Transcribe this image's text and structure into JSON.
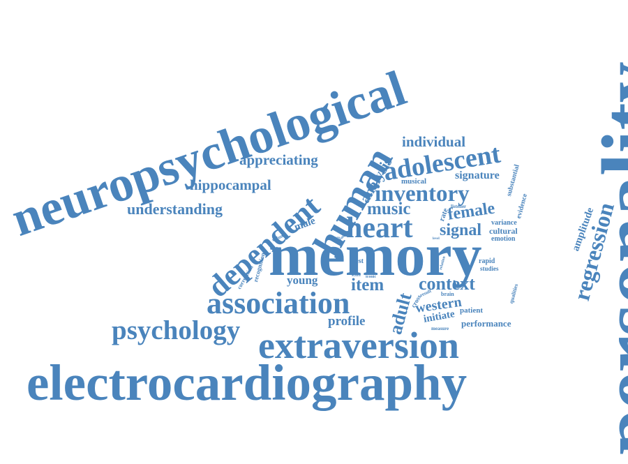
{
  "cloud": {
    "color": "#4a84bc",
    "words": [
      {
        "text": "personality"
      },
      {
        "text": "neuropsychological"
      },
      {
        "text": "electrocardiography"
      },
      {
        "text": "memory"
      },
      {
        "text": "extraversion"
      },
      {
        "text": "association"
      },
      {
        "text": "human"
      },
      {
        "text": "psychology"
      },
      {
        "text": "dependent"
      },
      {
        "text": "heart"
      },
      {
        "text": "adolescent"
      },
      {
        "text": "inventory"
      },
      {
        "text": "regression"
      },
      {
        "text": "context"
      },
      {
        "text": "analysis"
      },
      {
        "text": "understanding"
      },
      {
        "text": "hippocampal"
      },
      {
        "text": "appreciating"
      },
      {
        "text": "individual"
      },
      {
        "text": "music"
      },
      {
        "text": "female"
      },
      {
        "text": "signal"
      },
      {
        "text": "item"
      },
      {
        "text": "adult"
      },
      {
        "text": "western"
      },
      {
        "text": "profile"
      },
      {
        "text": "young"
      },
      {
        "text": "signature"
      },
      {
        "text": "amplitude"
      },
      {
        "text": "male"
      },
      {
        "text": "initiate"
      },
      {
        "text": "performance"
      },
      {
        "text": "cultural"
      },
      {
        "text": "musical"
      },
      {
        "text": "rate"
      },
      {
        "text": "substantial"
      },
      {
        "text": "evidence"
      },
      {
        "text": "variance"
      },
      {
        "text": "emotion"
      },
      {
        "text": "rapid"
      },
      {
        "text": "studies"
      },
      {
        "text": "patient"
      },
      {
        "text": "qualities"
      },
      {
        "text": "test"
      },
      {
        "text": "recognition"
      },
      {
        "text": "correlation"
      },
      {
        "text": "cross"
      },
      {
        "text": "brain"
      },
      {
        "text": "result"
      },
      {
        "text": "measure"
      },
      {
        "text": "listener"
      },
      {
        "text": "relation"
      },
      {
        "text": "volume"
      },
      {
        "text": "group"
      },
      {
        "text": "score"
      },
      {
        "text": "iconic"
      },
      {
        "text": "more"
      },
      {
        "text": "level"
      }
    ]
  }
}
